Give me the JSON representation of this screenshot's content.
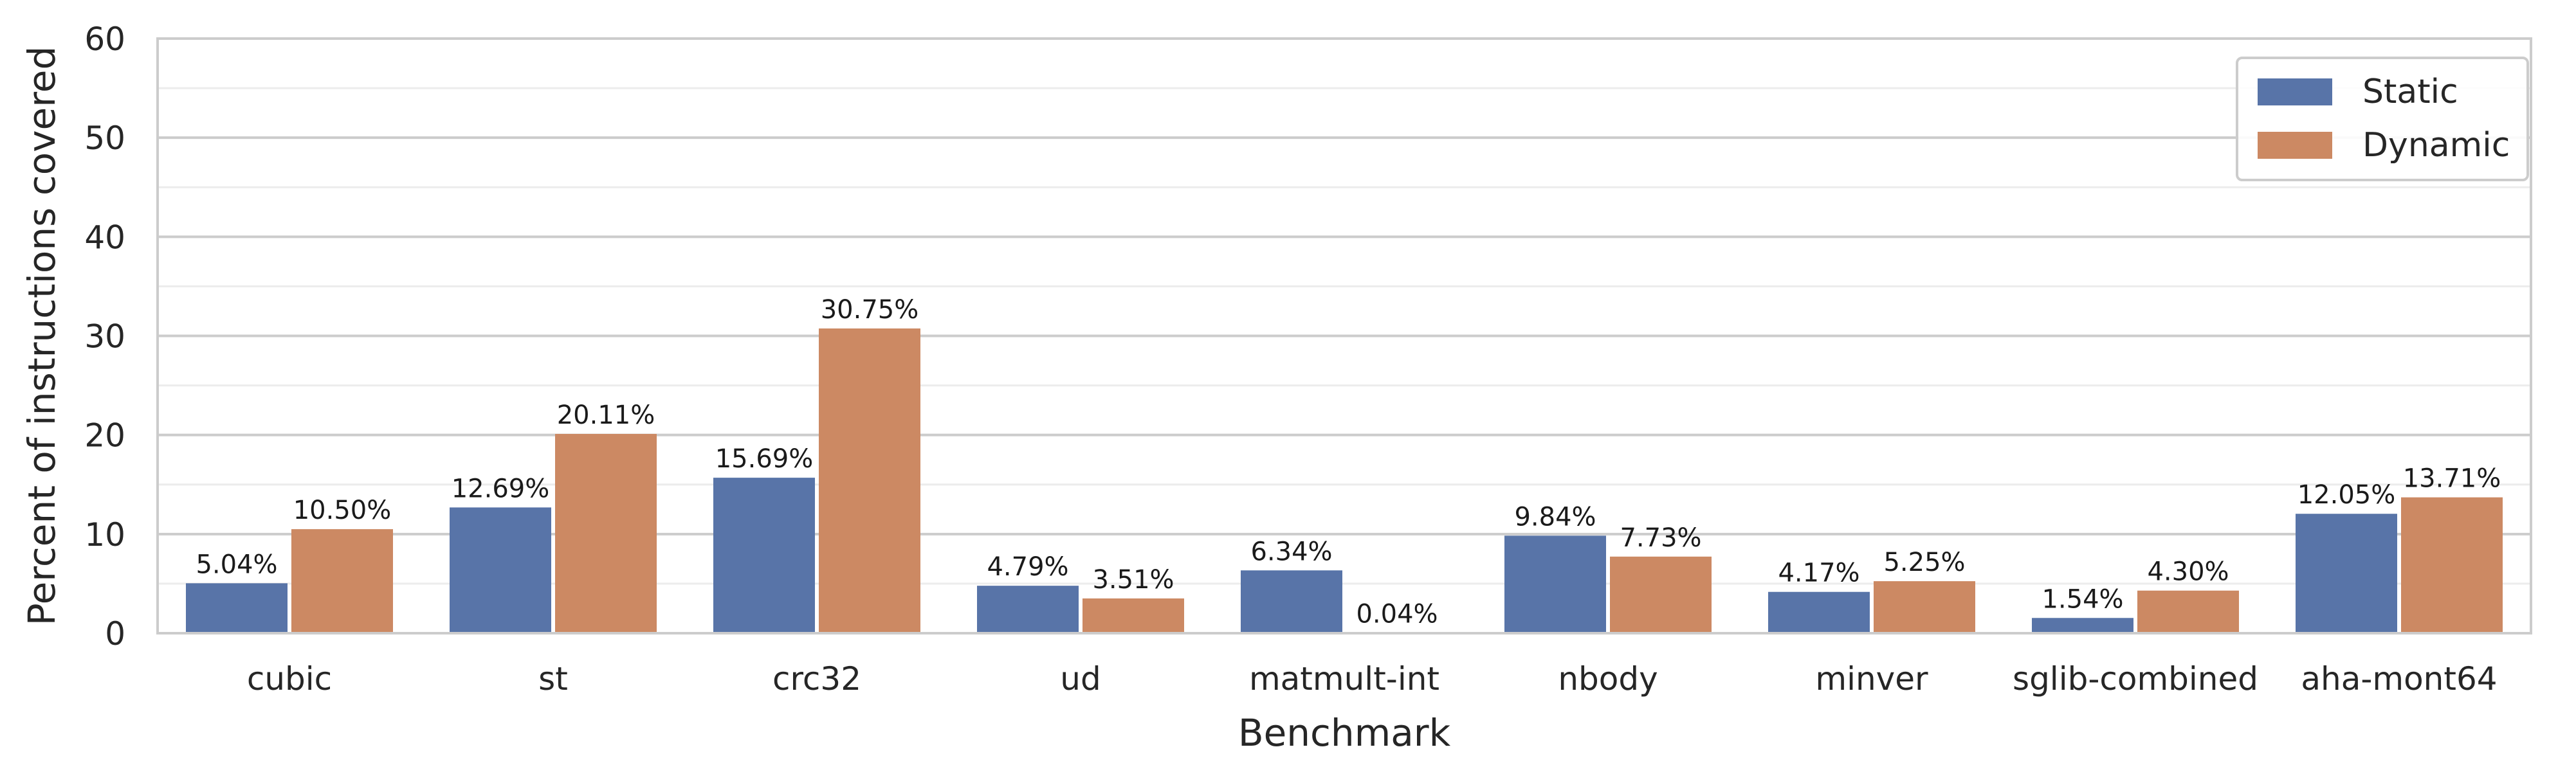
{
  "chart_data": {
    "type": "bar",
    "xlabel": "Benchmark",
    "ylabel": "Percent of instructions covered",
    "ylim": [
      0,
      60
    ],
    "yticks": [
      0,
      10,
      20,
      30,
      40,
      50,
      60
    ],
    "minor_grid_step": 5,
    "grid": true,
    "legend_position": "top-right",
    "categories": [
      "cubic",
      "st",
      "crc32",
      "ud",
      "matmult-int",
      "nbody",
      "minver",
      "sglib-combined",
      "aha-mont64"
    ],
    "series": [
      {
        "name": "Static",
        "color": "#5874a8",
        "values": [
          5.04,
          12.69,
          15.69,
          4.79,
          6.34,
          9.84,
          4.17,
          1.54,
          12.05
        ],
        "labels": [
          "5.04%",
          "12.69%",
          "15.69%",
          "4.79%",
          "6.34%",
          "9.84%",
          "4.17%",
          "1.54%",
          "12.05%"
        ]
      },
      {
        "name": "Dynamic",
        "color": "#cc8963",
        "values": [
          10.5,
          20.11,
          30.75,
          3.51,
          0.04,
          7.73,
          5.25,
          4.3,
          13.71
        ],
        "labels": [
          "10.50%",
          "20.11%",
          "30.75%",
          "3.51%",
          "0.04%",
          "7.73%",
          "5.25%",
          "4.30%",
          "13.71%"
        ]
      }
    ]
  }
}
